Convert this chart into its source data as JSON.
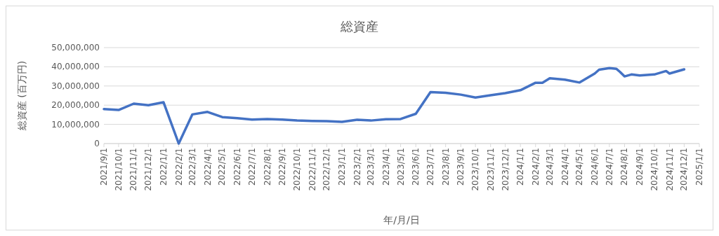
{
  "chart_data": {
    "type": "line",
    "title": "総資産",
    "xlabel": "年/月/日",
    "ylabel": "総資産 (百万円)",
    "x": [
      "2021-09-01",
      "2021-10-01",
      "2021-11-01",
      "2021-12-01",
      "2022-01-01",
      "2022-02-01",
      "2022-03-01",
      "2022-04-01",
      "2022-05-01",
      "2022-06-01",
      "2022-07-01",
      "2022-08-01",
      "2022-09-01",
      "2022-10-01",
      "2022-11-01",
      "2022-12-01",
      "2023-01-01",
      "2023-02-01",
      "2023-03-01",
      "2023-04-01",
      "2023-05-01",
      "2023-06-01",
      "2023-07-01",
      "2023-08-01",
      "2023-09-01",
      "2023-10-01",
      "2023-11-01",
      "2023-12-01",
      "2024-01-01",
      "2024-02-01",
      "2024-02-15",
      "2024-03-01",
      "2024-04-01",
      "2024-05-01",
      "2024-06-01",
      "2024-06-10",
      "2024-07-01",
      "2024-07-15",
      "2024-07-22",
      "2024-08-01",
      "2024-08-15",
      "2024-09-01",
      "2024-10-01",
      "2024-10-25",
      "2024-11-01",
      "2024-12-01"
    ],
    "series": [
      {
        "color": "#4472c4",
        "values": [
          18000000,
          17500000,
          20800000,
          20000000,
          21500000,
          0,
          15200000,
          16500000,
          13800000,
          13200000,
          12500000,
          12800000,
          12500000,
          12000000,
          11800000,
          11700000,
          11300000,
          12400000,
          12000000,
          12700000,
          12800000,
          15500000,
          26800000,
          26500000,
          25500000,
          24000000,
          25200000,
          26300000,
          27800000,
          31700000,
          31700000,
          34000000,
          33300000,
          31800000,
          36500000,
          38500000,
          39300000,
          39000000,
          37500000,
          35000000,
          36000000,
          35500000,
          36000000,
          37800000,
          36500000,
          38700000
        ]
      }
    ],
    "xlim": [
      "2021-09-01",
      "2025-01-01"
    ],
    "xticks": [
      {
        "value": "2021-09-01",
        "label": "2021/9/1"
      },
      {
        "value": "2021-10-01",
        "label": "2021/10/1"
      },
      {
        "value": "2021-11-01",
        "label": "2021/11/1"
      },
      {
        "value": "2021-12-01",
        "label": "2021/12/1"
      },
      {
        "value": "2022-01-01",
        "label": "2022/1/1"
      },
      {
        "value": "2022-02-01",
        "label": "2022/2/1"
      },
      {
        "value": "2022-03-01",
        "label": "2022/3/1"
      },
      {
        "value": "2022-04-01",
        "label": "2022/4/1"
      },
      {
        "value": "2022-05-01",
        "label": "2022/5/1"
      },
      {
        "value": "2022-06-01",
        "label": "2022/6/1"
      },
      {
        "value": "2022-07-01",
        "label": "2022/7/1"
      },
      {
        "value": "2022-08-01",
        "label": "2022/8/1"
      },
      {
        "value": "2022-09-01",
        "label": "2022/9/1"
      },
      {
        "value": "2022-10-01",
        "label": "2022/10/1"
      },
      {
        "value": "2022-11-01",
        "label": "2022/11/1"
      },
      {
        "value": "2022-12-01",
        "label": "2022/12/1"
      },
      {
        "value": "2023-01-01",
        "label": "2023/1/1"
      },
      {
        "value": "2023-02-01",
        "label": "2023/2/1"
      },
      {
        "value": "2023-03-01",
        "label": "2023/3/1"
      },
      {
        "value": "2023-04-01",
        "label": "2023/4/1"
      },
      {
        "value": "2023-05-01",
        "label": "2023/5/1"
      },
      {
        "value": "2023-06-01",
        "label": "2023/6/1"
      },
      {
        "value": "2023-07-01",
        "label": "2023/7/1"
      },
      {
        "value": "2023-08-01",
        "label": "2023/8/1"
      },
      {
        "value": "2023-09-01",
        "label": "2023/9/1"
      },
      {
        "value": "2023-10-01",
        "label": "2023/10/1"
      },
      {
        "value": "2023-11-01",
        "label": "2023/11/1"
      },
      {
        "value": "2023-12-01",
        "label": "2023/12/1"
      },
      {
        "value": "2024-01-01",
        "label": "2024/1/1"
      },
      {
        "value": "2024-02-01",
        "label": "2024/2/1"
      },
      {
        "value": "2024-03-01",
        "label": "2024/3/1"
      },
      {
        "value": "2024-04-01",
        "label": "2024/4/1"
      },
      {
        "value": "2024-05-01",
        "label": "2024/5/1"
      },
      {
        "value": "2024-06-01",
        "label": "2024/6/1"
      },
      {
        "value": "2024-07-01",
        "label": "2024/7/1"
      },
      {
        "value": "2024-08-01",
        "label": "2024/8/1"
      },
      {
        "value": "2024-09-01",
        "label": "2024/9/1"
      },
      {
        "value": "2024-10-01",
        "label": "2024/10/1"
      },
      {
        "value": "2024-11-01",
        "label": "2024/11/1"
      },
      {
        "value": "2024-12-01",
        "label": "2024/12/1"
      },
      {
        "value": "2025-01-01",
        "label": "2025/1/1"
      }
    ],
    "ylim": [
      0,
      50000000
    ],
    "yticks": [
      {
        "value": 0,
        "label": "0"
      },
      {
        "value": 10000000,
        "label": "10,000,000"
      },
      {
        "value": 20000000,
        "label": "20,000,000"
      },
      {
        "value": 30000000,
        "label": "30,000,000"
      },
      {
        "value": 40000000,
        "label": "40,000,000"
      },
      {
        "value": 50000000,
        "label": "50,000,000"
      }
    ],
    "grid": "y",
    "marker": "none",
    "line_style": "solid"
  }
}
